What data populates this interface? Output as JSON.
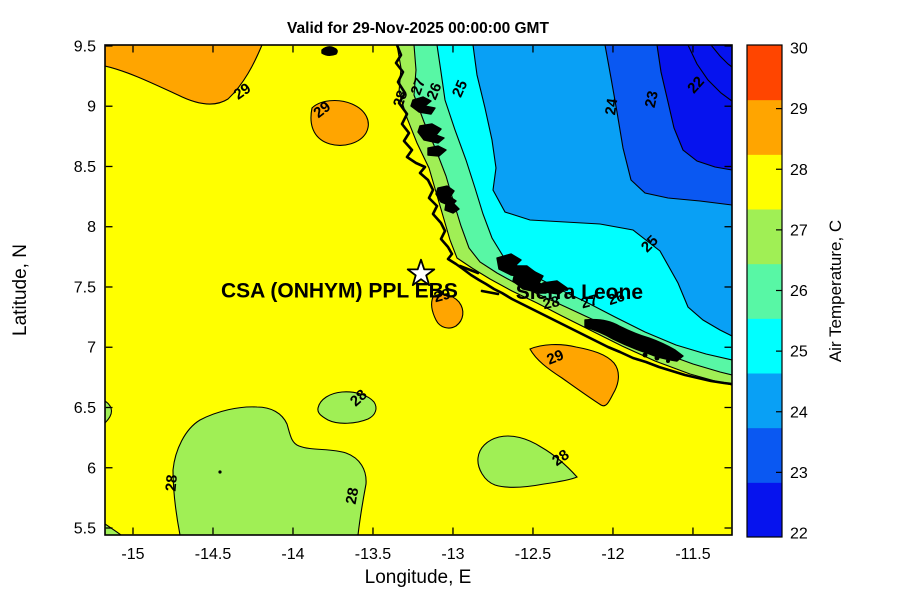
{
  "chart_data": {
    "type": "contour",
    "subtype": "filled-contour-map",
    "title": "Valid for 29-Nov-2025 00:00:00 GMT",
    "xlabel": "Longitude, E",
    "ylabel": "Latitude, N",
    "xlim": [
      -15.175,
      -11.256
    ],
    "ylim": [
      5.442,
      9.508
    ],
    "xtick_values": [
      -15,
      -14.5,
      -14,
      -13.5,
      -13,
      -12.5,
      -12,
      -11.5
    ],
    "xtick_labels": [
      "-15",
      "-14.5",
      "-14",
      "-13.5",
      "-13",
      "-12.5",
      "-12",
      "-11.5"
    ],
    "ytick_values": [
      9.5,
      9,
      8.5,
      8,
      7.5,
      7,
      6.5,
      6,
      5.5
    ],
    "ytick_labels": [
      "9.5",
      "9",
      "8.5",
      "8",
      "7.5",
      "7",
      "6.5",
      "6",
      "5.5"
    ],
    "grid": false,
    "contour_levels": [
      22,
      23,
      24,
      25,
      26,
      27,
      28,
      29
    ],
    "colorbar": {
      "label": "Air Temperature, C",
      "tick_values": [
        22,
        23,
        24,
        25,
        26,
        27,
        28,
        29,
        30
      ],
      "tick_labels": [
        "22",
        "23",
        "24",
        "25",
        "26",
        "27",
        "28",
        "29",
        "30"
      ],
      "colors_bottom_to_top": [
        "#0613EE",
        "#0A58F2",
        "#09A0F5",
        "#00FFFF",
        "#58F7A5",
        "#A0EF55",
        "#FFFF00",
        "#FFA500",
        "#FF4500"
      ]
    },
    "palette": {
      "band_below_22": "#0613EE",
      "band_22_23": "#0613EE",
      "band_23_24": "#0A58F2",
      "band_24_25": "#09A0F5",
      "band_25_26": "#00FFFF",
      "band_26_27": "#58F7A5",
      "band_27_28": "#A0EF55",
      "band_28_29": "#FFFF00",
      "band_29_30": "#FFA500",
      "coastline": "#000000",
      "marker_fill": "#FFFFFF"
    },
    "bands_description": [
      {
        "range": "28-29 C",
        "color": "#FFFF00",
        "where": "open ocean, most of map"
      },
      {
        "range": "29-30 C",
        "color": "#FFA500",
        "where": "warm patches NW, center and SE of star"
      },
      {
        "range": "27-28 C",
        "color": "#A0EF55",
        "where": "coastal strip and cool patches in south"
      },
      {
        "range": "26-27 C",
        "color": "#58F7A5",
        "where": "narrow strip inland of coast"
      },
      {
        "range": "25-26 C",
        "color": "#00FFFF",
        "where": "wide tongue inland, NE of coast"
      },
      {
        "range": "24-25 C",
        "color": "#09A0F5",
        "where": "large region upper right"
      },
      {
        "range": "23-24 C",
        "color": "#0A58F2",
        "where": "band near top right"
      },
      {
        "range": "22-23 C and below",
        "color": "#0613EE",
        "where": "top right corner"
      }
    ],
    "contour_labels": [
      {
        "value": "29",
        "lon": -14.3,
        "lat": 9.09,
        "rot": -35
      },
      {
        "value": "29",
        "lon": -13.8,
        "lat": 8.94,
        "rot": -38
      },
      {
        "value": "28",
        "lon": -13.3,
        "lat": 9.05,
        "rot": -72
      },
      {
        "value": "27",
        "lon": -13.19,
        "lat": 9.15,
        "rot": -70
      },
      {
        "value": "26",
        "lon": -13.09,
        "lat": 9.11,
        "rot": -68
      },
      {
        "value": "25",
        "lon": -12.93,
        "lat": 9.13,
        "rot": -66
      },
      {
        "value": "24",
        "lon": -11.98,
        "lat": 8.99,
        "rot": -82
      },
      {
        "value": "23",
        "lon": -11.73,
        "lat": 9.05,
        "rot": -78
      },
      {
        "value": "22",
        "lon": -11.46,
        "lat": 9.15,
        "rot": -48
      },
      {
        "value": "25",
        "lon": -11.75,
        "lat": 7.83,
        "rot": -45
      },
      {
        "value": "26",
        "lon": -11.97,
        "lat": 7.37,
        "rot": -18
      },
      {
        "value": "27",
        "lon": -12.14,
        "lat": 7.34,
        "rot": -15
      },
      {
        "value": "28",
        "lon": -12.38,
        "lat": 7.33,
        "rot": -12
      },
      {
        "value": "29",
        "lon": -13.06,
        "lat": 7.39,
        "rot": -15
      },
      {
        "value": "29",
        "lon": -12.35,
        "lat": 6.88,
        "rot": -22
      },
      {
        "value": "28",
        "lon": -13.57,
        "lat": 6.55,
        "rot": -42
      },
      {
        "value": "28",
        "lon": -14.73,
        "lat": 5.87,
        "rot": -85
      },
      {
        "value": "28",
        "lon": -13.6,
        "lat": 5.76,
        "rot": -80
      },
      {
        "value": "28",
        "lon": -12.31,
        "lat": 6.05,
        "rot": -35
      }
    ],
    "marker": {
      "shape": "star",
      "lon": -13.2,
      "lat": 7.61
    },
    "annotations": [
      {
        "text": "CSA (ONHYM) PPL EBS",
        "lon": -13.71,
        "lat": 7.47
      },
      {
        "text": "Sierra Leone",
        "lon": -12.21,
        "lat": 7.46
      }
    ]
  }
}
